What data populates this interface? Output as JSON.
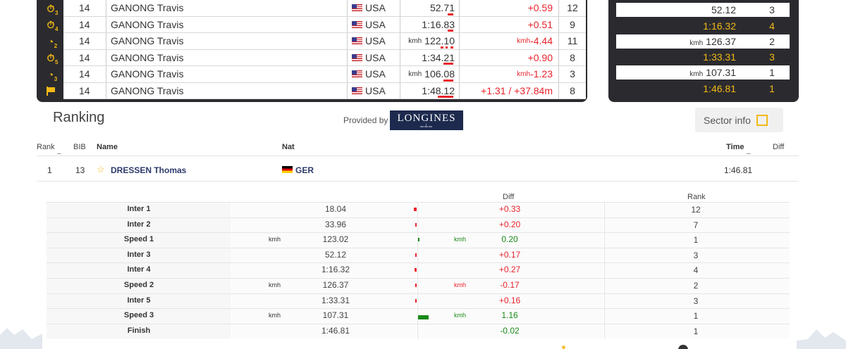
{
  "live_rows": [
    {
      "icon": "stopwatch-icon",
      "sub": "3",
      "bib": "14",
      "name": "GANONG Travis",
      "nat": "USA",
      "unit": "",
      "time": "52.71",
      "diff_unit": "",
      "diff": "+0.59",
      "rank": "12",
      "ind": "red",
      "ind_w": 8
    },
    {
      "icon": "stopwatch-icon",
      "sub": "4",
      "bib": "14",
      "name": "GANONG Travis",
      "nat": "USA",
      "unit": "",
      "time": "1:16.83",
      "diff_unit": "",
      "diff": "+0.51",
      "rank": "9",
      "ind": "red",
      "ind_w": 8
    },
    {
      "icon": "speedometer-icon",
      "sub": "2",
      "bib": "14",
      "name": "GANONG Travis",
      "nat": "USA",
      "unit": "kmh",
      "time": "122.10",
      "diff_unit": "kmh",
      "diff": "-4.44",
      "rank": "11",
      "ind": "dot",
      "ind_w": 18
    },
    {
      "icon": "stopwatch-icon",
      "sub": "5",
      "bib": "14",
      "name": "GANONG Travis",
      "nat": "USA",
      "unit": "",
      "time": "1:34.21",
      "diff_unit": "",
      "diff": "+0.90",
      "rank": "8",
      "ind": "red",
      "ind_w": 14
    },
    {
      "icon": "speedometer-icon",
      "sub": "3",
      "bib": "14",
      "name": "GANONG Travis",
      "nat": "USA",
      "unit": "kmh",
      "time": "106.08",
      "diff_unit": "kmh",
      "diff": "-1.23",
      "rank": "3",
      "ind": "red",
      "ind_w": 14
    },
    {
      "icon": "finish-flag-icon",
      "sub": "",
      "bib": "14",
      "name": "GANONG Travis",
      "nat": "USA",
      "unit": "",
      "time": "1:48.12",
      "diff_unit": "",
      "diff": "+1.31 / +37.84m",
      "rank": "8",
      "ind": "red",
      "ind_w": 22
    }
  ],
  "best_rows": [
    {
      "style": "white",
      "unit": "",
      "value": "52.12",
      "rank": "3"
    },
    {
      "style": "gold",
      "unit": "",
      "value": "1:16.32",
      "rank": "4"
    },
    {
      "style": "white",
      "unit": "kmh",
      "value": "126.37",
      "rank": "2"
    },
    {
      "style": "gold",
      "unit": "",
      "value": "1:33.31",
      "rank": "3"
    },
    {
      "style": "white",
      "unit": "kmh",
      "value": "107.31",
      "rank": "1"
    },
    {
      "style": "gold",
      "unit": "",
      "value": "1:46.81",
      "rank": "1"
    }
  ],
  "ranking": {
    "title": "Ranking",
    "provided_by": "Provided by",
    "sponsor": "LONGINES",
    "sector_info": "Sector info",
    "headers": {
      "rank": "Rank",
      "bib": "BIB",
      "name": "Name",
      "nat": "Nat",
      "time": "Time",
      "diff": "Diff"
    },
    "athlete": {
      "rank": "1",
      "bib": "13",
      "name": "DRESSEN Thomas",
      "nat": "GER",
      "time": "1:46.81"
    }
  },
  "details": {
    "headers": {
      "diff": "Diff",
      "rank": "Rank"
    },
    "rows": [
      {
        "label": "Inter 1",
        "unit": "",
        "value": "18.04",
        "diff_unit": "",
        "diff": "+0.33",
        "diff_color": "red",
        "rank": "12",
        "bar": -4
      },
      {
        "label": "Inter 2",
        "unit": "",
        "value": "33.96",
        "diff_unit": "",
        "diff": "+0.20",
        "diff_color": "red",
        "rank": "7",
        "bar": -2
      },
      {
        "label": "Speed 1",
        "unit": "kmh",
        "value": "123.02",
        "diff_unit": "kmh",
        "diff": "0.20",
        "diff_color": "green",
        "rank": "1",
        "bar": 2
      },
      {
        "label": "Inter 3",
        "unit": "",
        "value": "52.12",
        "diff_unit": "",
        "diff": "+0.17",
        "diff_color": "red",
        "rank": "3",
        "bar": -2
      },
      {
        "label": "Inter 4",
        "unit": "",
        "value": "1:16.32",
        "diff_unit": "",
        "diff": "+0.27",
        "diff_color": "red",
        "rank": "4",
        "bar": -3
      },
      {
        "label": "Speed 2",
        "unit": "kmh",
        "value": "126.37",
        "diff_unit": "kmh",
        "diff": "-0.17",
        "diff_color": "red",
        "rank": "2",
        "bar": -2
      },
      {
        "label": "Inter 5",
        "unit": "",
        "value": "1:33.31",
        "diff_unit": "",
        "diff": "+0.16",
        "diff_color": "red",
        "rank": "3",
        "bar": -2
      },
      {
        "label": "Speed 3",
        "unit": "kmh",
        "value": "107.31",
        "diff_unit": "kmh",
        "diff": "1.16",
        "diff_color": "green",
        "rank": "1",
        "bar": 15
      },
      {
        "label": "Finish",
        "unit": "",
        "value": "1:46.81",
        "diff_unit": "",
        "diff": "-0.02",
        "diff_color": "green",
        "rank": "1",
        "bar": 0
      }
    ]
  },
  "colors": {
    "accent": "#f3b916",
    "panel": "#2b2b2f",
    "negative": "#e8232b",
    "positive": "#1a8a1a",
    "name": "#2d3a6b"
  }
}
